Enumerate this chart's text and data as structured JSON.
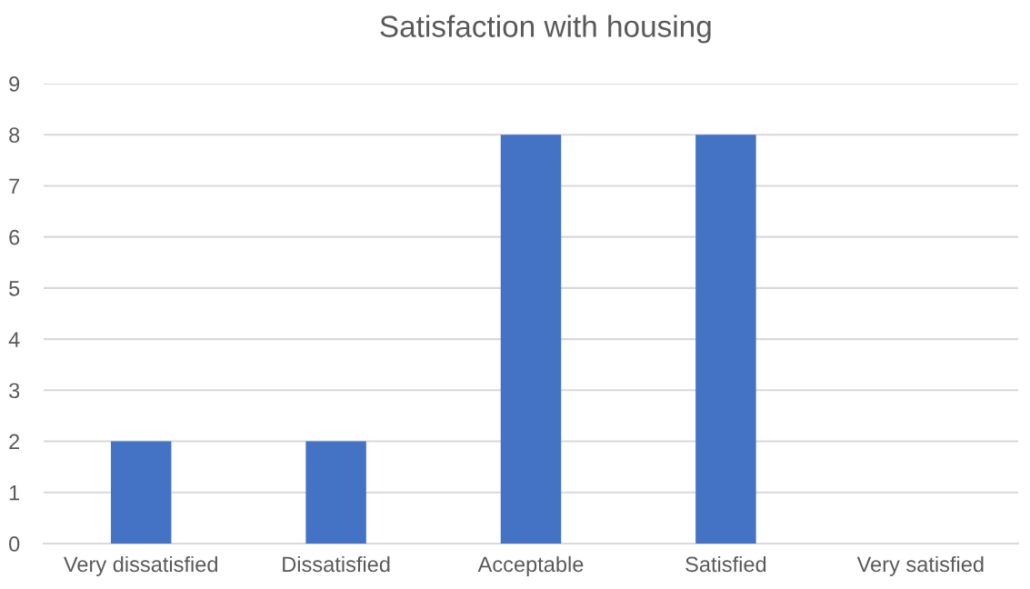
{
  "chart_data": {
    "type": "bar",
    "title": "Satisfaction with housing",
    "categories": [
      "Very dissatisfied",
      "Dissatisfied",
      "Acceptable",
      "Satisfied",
      "Very satisfied"
    ],
    "values": [
      2,
      2,
      8,
      8,
      0
    ],
    "color": "#4472c4",
    "ylim": [
      0,
      9
    ],
    "yticks": [
      0,
      1,
      2,
      3,
      4,
      5,
      6,
      7,
      8,
      9
    ],
    "grid": "y"
  }
}
